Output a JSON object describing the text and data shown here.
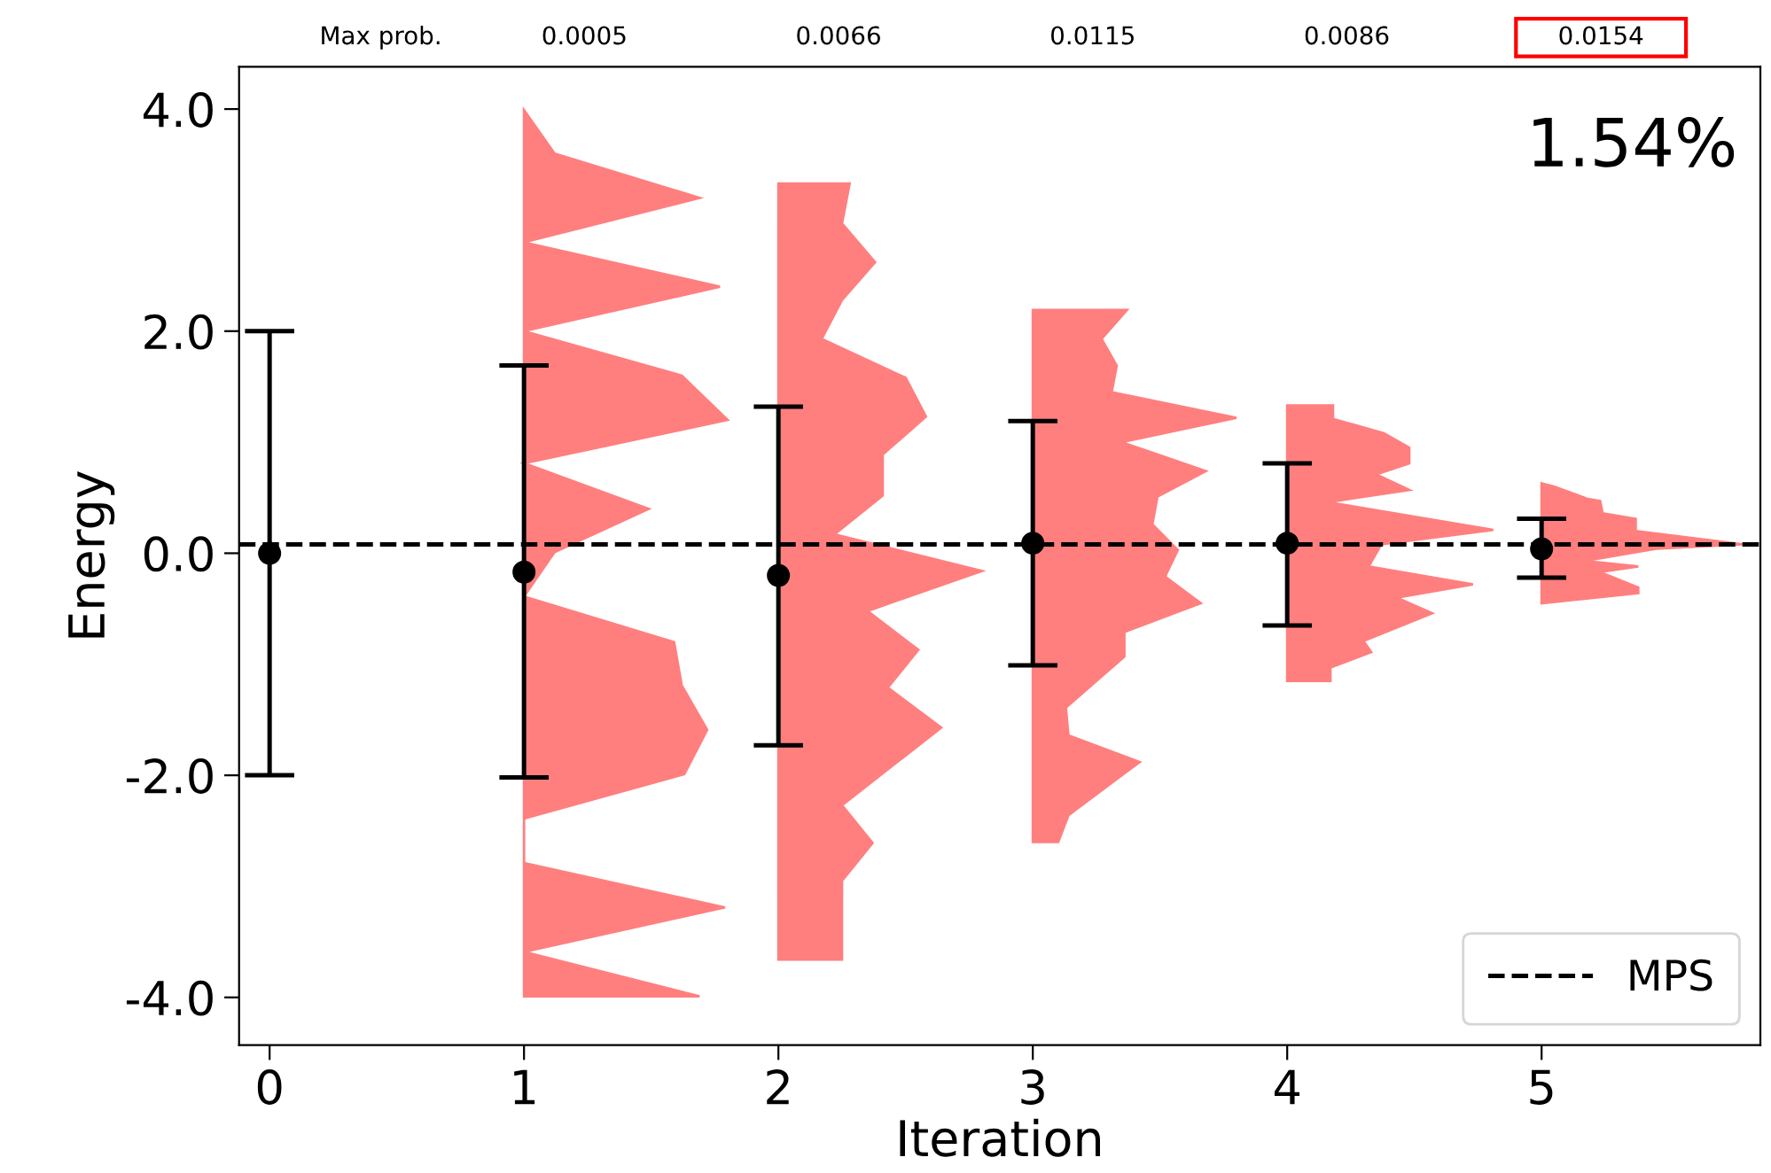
{
  "chart_data": {
    "type": "scatter",
    "xlabel": "Iteration",
    "ylabel": "Energy",
    "annotations": [
      "Max prob.",
      "0.0005",
      "0.0066",
      "0.0115",
      "0.0086",
      "0.0154",
      "1.54%"
    ],
    "xlim": [
      -0.12,
      5.86
    ],
    "xticks": [
      0,
      1,
      2,
      3,
      4,
      5
    ],
    "ylim": [
      -4.43,
      4.38
    ],
    "yticks": [
      {
        "value": -4,
        "label": "-4.0"
      },
      {
        "value": -2,
        "label": "-2.0"
      },
      {
        "value": 0,
        "label": "0.0"
      },
      {
        "value": 2,
        "label": "2.0"
      },
      {
        "value": 4,
        "label": "4.0"
      }
    ],
    "grid": false,
    "legend": "bottom right",
    "ref_lines": [
      {
        "axis": "y",
        "value": 0.08,
        "label": "MPS",
        "color": "#000000",
        "line_style": "dashed"
      }
    ],
    "series": [
      {
        "type": "area",
        "color": "#ff7f7f",
        "x": [
          1.0,
          1.12,
          1.69,
          1.0,
          1.77,
          1.0,
          1.62,
          1.8,
          1.0,
          1.49,
          1.12,
          1.0,
          1.59,
          1.62,
          1.72,
          1.63,
          1.0,
          1.0,
          1.79,
          1.0,
          1.69,
          1.0
        ],
        "values": [
          3.99,
          3.6,
          3.2,
          2.8,
          2.4,
          2.0,
          1.6,
          1.2,
          0.81,
          0.4,
          0.01,
          -0.39,
          -0.8,
          -1.19,
          -1.59,
          -1.99,
          -2.39,
          -2.79,
          -3.19,
          -3.59,
          -3.99,
          -3.99
        ]
      },
      {
        "type": "area",
        "color": "#ff7f7f",
        "x": [
          2.0,
          2.28,
          2.25,
          2.38,
          2.25,
          2.17,
          2.5,
          2.58,
          2.41,
          2.41,
          2.22,
          2.8,
          2.35,
          2.55,
          2.43,
          2.64,
          2.25,
          2.37,
          2.25,
          2.25,
          2.0
        ],
        "values": [
          3.33,
          3.33,
          2.97,
          2.62,
          2.28,
          1.93,
          1.58,
          1.23,
          0.89,
          0.52,
          0.17,
          -0.16,
          -0.52,
          -0.87,
          -1.21,
          -1.57,
          -2.27,
          -2.61,
          -2.95,
          -3.66,
          -3.66
        ]
      },
      {
        "type": "area",
        "color": "#ff7f7f",
        "x": [
          3.0,
          3.37,
          3.27,
          3.33,
          3.31,
          3.8,
          3.35,
          3.68,
          3.49,
          3.47,
          3.57,
          3.52,
          3.66,
          3.36,
          3.36,
          3.13,
          3.14,
          3.42,
          3.14,
          3.1,
          3.0
        ],
        "values": [
          2.19,
          2.19,
          1.93,
          1.69,
          1.45,
          1.22,
          1.0,
          0.74,
          0.51,
          0.26,
          0.03,
          -0.21,
          -0.45,
          -0.71,
          -0.93,
          -1.39,
          -1.64,
          -1.88,
          -2.36,
          -2.6,
          -2.6
        ]
      },
      {
        "type": "area",
        "color": "#ff7f7f",
        "x": [
          4.0,
          4.18,
          4.18,
          4.38,
          4.48,
          4.48,
          4.35,
          4.48,
          4.16,
          4.81,
          4.37,
          4.32,
          4.73,
          4.43,
          4.57,
          4.3,
          4.33,
          4.17,
          4.17,
          4.0
        ],
        "values": [
          1.33,
          1.33,
          1.21,
          1.08,
          0.95,
          0.81,
          0.71,
          0.57,
          0.46,
          0.21,
          0.08,
          -0.12,
          -0.28,
          -0.4,
          -0.54,
          -0.79,
          -0.89,
          -1.03,
          -1.15,
          -1.15
        ]
      },
      {
        "type": "area",
        "color": "#ff7f7f",
        "x": [
          5.0,
          5.05,
          5.18,
          5.23,
          5.24,
          5.37,
          5.37,
          5.79,
          5.45,
          5.17,
          5.38,
          5.23,
          5.38,
          5.38,
          5.0
        ],
        "values": [
          0.63,
          0.6,
          0.49,
          0.47,
          0.36,
          0.31,
          0.2,
          0.08,
          0.04,
          -0.07,
          -0.12,
          -0.17,
          -0.31,
          -0.36,
          -0.45
        ]
      },
      {
        "marker": "circle",
        "color": "#000000",
        "x": [
          0,
          1,
          2,
          3,
          4,
          5
        ],
        "values": [
          0.0,
          -0.17,
          -0.2,
          0.09,
          0.09,
          0.04
        ],
        "errors": [
          [
            -2.0,
            2.0
          ],
          [
            -2.02,
            1.69
          ],
          [
            -1.73,
            1.32
          ],
          [
            -1.01,
            1.19
          ],
          [
            -0.65,
            0.81
          ],
          [
            -0.22,
            0.31
          ]
        ]
      }
    ]
  }
}
